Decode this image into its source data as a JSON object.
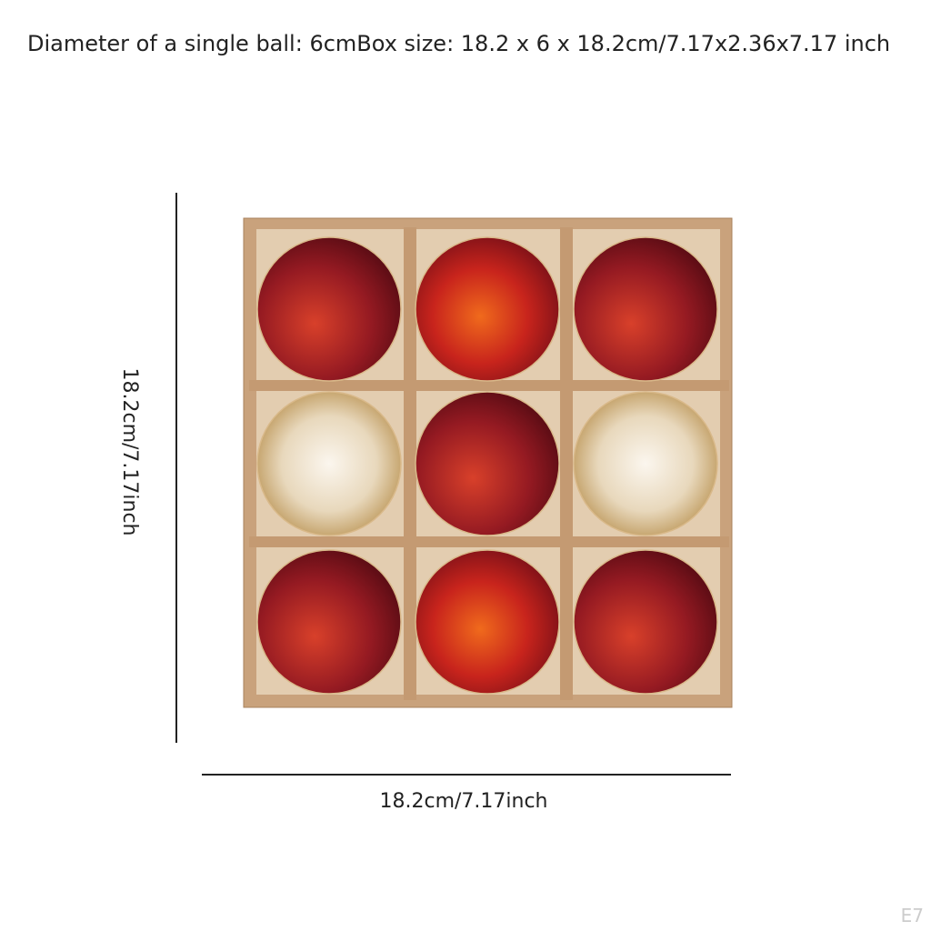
{
  "header": {
    "title": "Diameter of a single ball: 6cmBox size: 18.2 x 6 x 18.2cm/7.17x2.36x7.17 inch"
  },
  "dimensions": {
    "height": "18.2cm/7.17inch",
    "width": "18.2cm/7.17inch"
  },
  "watermark": "E7"
}
